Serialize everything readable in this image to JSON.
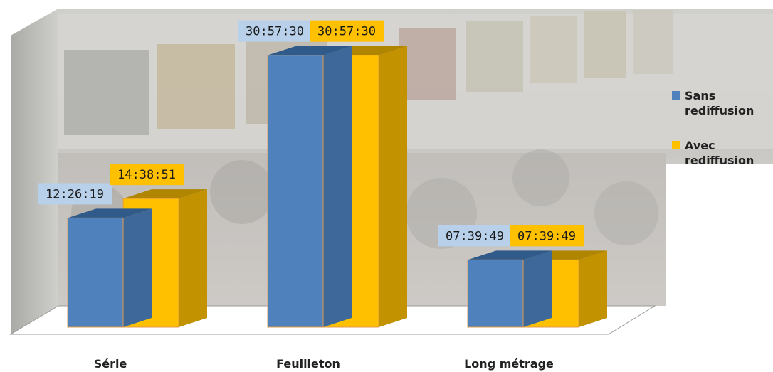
{
  "chart_data": {
    "type": "bar",
    "categories": [
      "Série",
      "Feuilleton",
      "Long métrage"
    ],
    "series": [
      {
        "name": "Sans rediffusion",
        "color": "#4f81bd",
        "values": [
          12.4386,
          30.9583,
          7.6636
        ],
        "labels": [
          "12:26:19",
          "30:57:30",
          "07:39:49"
        ]
      },
      {
        "name": "Avec rediffusion",
        "color": "#ffc000",
        "values": [
          14.6475,
          30.9583,
          7.6636
        ],
        "labels": [
          "14:38:51",
          "30:57:30",
          "07:39:49"
        ]
      }
    ],
    "value_unit": "hours (displayed as hh:mm:ss)",
    "ylim": [
      0,
      35
    ],
    "grid": false,
    "legend_position": "right",
    "three_d": true,
    "background": "cinema lobby photograph behind the bars",
    "label_background_colors": [
      "#b8d0ea",
      "#ffc000"
    ]
  }
}
